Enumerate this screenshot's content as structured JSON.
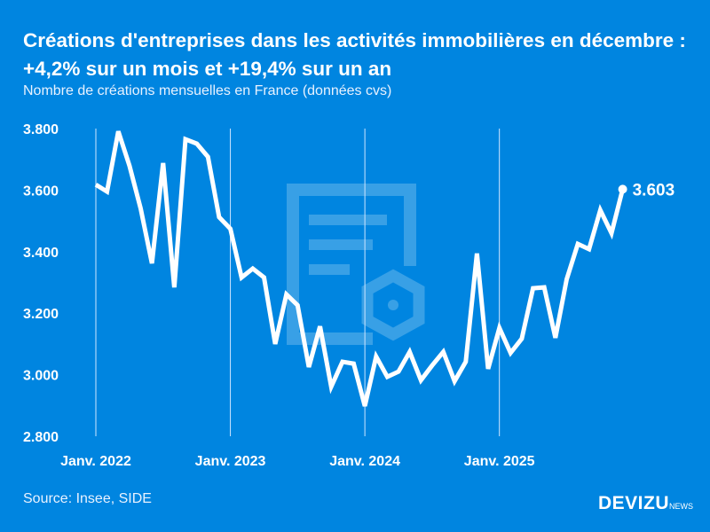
{
  "header": {
    "title": "Créations d'entreprises dans les activités immobilières en décembre : +4,2% sur un mois et +19,4% sur un an",
    "subtitle": "Nombre de créations mensuelles en France (données cvs)"
  },
  "footer": {
    "source": "Source: Insee, SIDE",
    "logo": "DEVIZU",
    "logo_suffix": "NEWS"
  },
  "colors": {
    "background": "#0085e0",
    "line": "#ffffff"
  },
  "chart_data": {
    "type": "line",
    "title": "Créations d'entreprises dans les activités immobilières en décembre : +4,2% sur un mois et +19,4% sur un an",
    "subtitle": "Nombre de créations mensuelles en France (données cvs)",
    "x_start": "2022-01",
    "x_end": "2025-12",
    "x_unit": "month",
    "ylim": [
      2800,
      3800
    ],
    "yticks": [
      {
        "v": 2800,
        "label": "2.800"
      },
      {
        "v": 3000,
        "label": "3.000"
      },
      {
        "v": 3200,
        "label": "3.200"
      },
      {
        "v": 3400,
        "label": "3.400"
      },
      {
        "v": 3600,
        "label": "3.600"
      },
      {
        "v": 3800,
        "label": "3.800"
      }
    ],
    "xticks": [
      {
        "month": 0,
        "label": "Janv. 2022"
      },
      {
        "month": 12,
        "label": "Janv. 2023"
      },
      {
        "month": 24,
        "label": "Janv. 2024"
      },
      {
        "month": 36,
        "label": "Janv. 2025"
      }
    ],
    "grid": "vertical at year starts",
    "values": [
      3618,
      3595,
      3791,
      3679,
      3540,
      3362,
      3688,
      3284,
      3765,
      3751,
      3708,
      3512,
      3474,
      3316,
      3345,
      3316,
      3100,
      3261,
      3226,
      3025,
      3157,
      2961,
      3042,
      3036,
      2898,
      3059,
      2993,
      3010,
      3074,
      2982,
      3030,
      3074,
      2979,
      3042,
      3394,
      3019,
      3152,
      3071,
      3117,
      3281,
      3284,
      3120,
      3310,
      3425,
      3408,
      3535,
      3460,
      3603
    ],
    "last_label": "3.603"
  }
}
